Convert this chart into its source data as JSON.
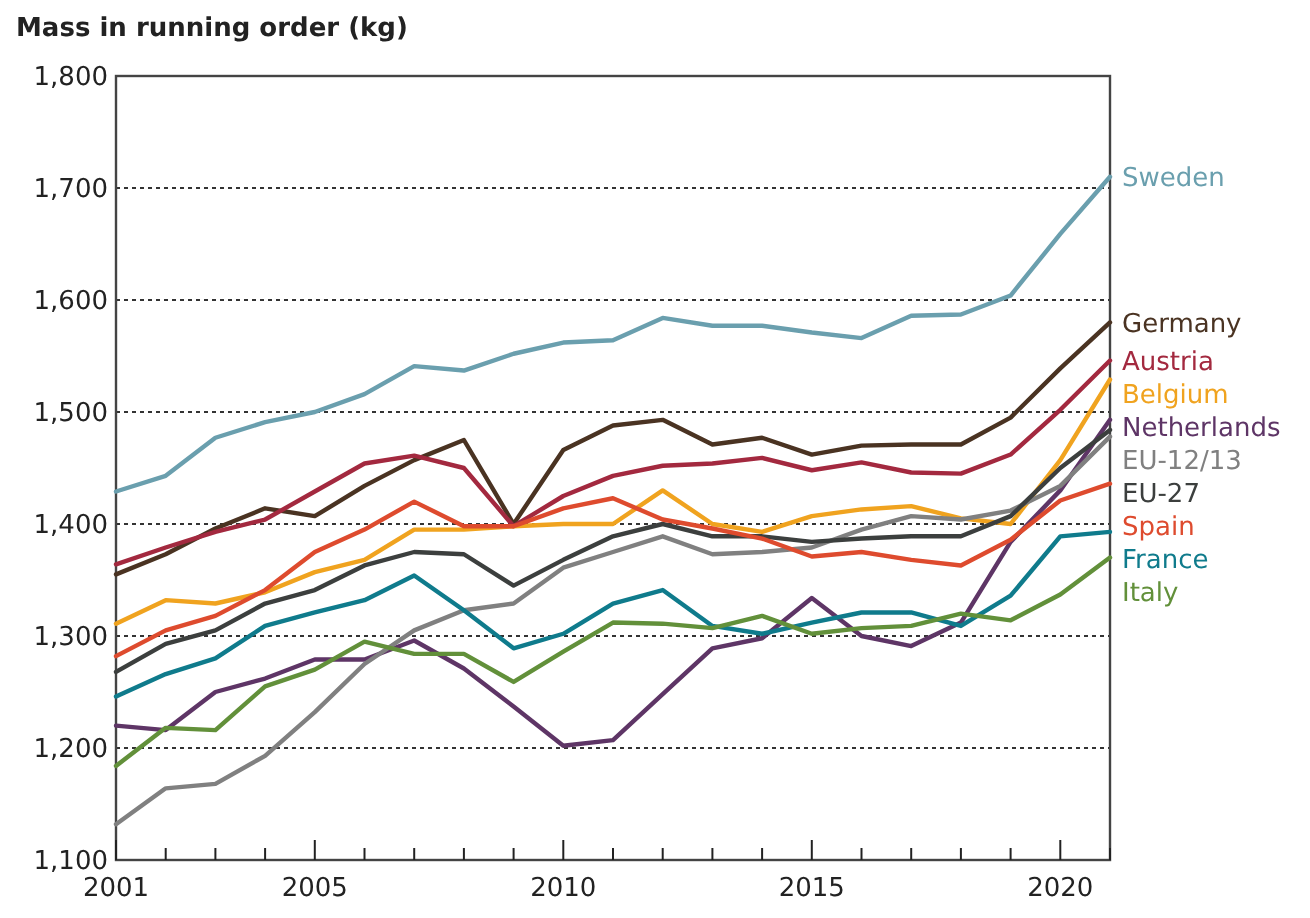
{
  "chart_data": {
    "type": "line",
    "ylabel": "Mass in running order (kg)",
    "x": [
      2001,
      2002,
      2003,
      2004,
      2005,
      2006,
      2007,
      2008,
      2009,
      2010,
      2011,
      2012,
      2013,
      2014,
      2015,
      2016,
      2017,
      2018,
      2019,
      2020,
      2021
    ],
    "xlim": [
      2001,
      2021
    ],
    "xticks": [
      {
        "value": 2001,
        "label": "2001"
      },
      {
        "value": 2002,
        "label": null
      },
      {
        "value": 2003,
        "label": null
      },
      {
        "value": 2004,
        "label": null
      },
      {
        "value": 2005,
        "label": "2005"
      },
      {
        "value": 2006,
        "label": null
      },
      {
        "value": 2007,
        "label": null
      },
      {
        "value": 2008,
        "label": null
      },
      {
        "value": 2009,
        "label": null
      },
      {
        "value": 2010,
        "label": "2010"
      },
      {
        "value": 2011,
        "label": null
      },
      {
        "value": 2012,
        "label": null
      },
      {
        "value": 2013,
        "label": null
      },
      {
        "value": 2014,
        "label": null
      },
      {
        "value": 2015,
        "label": "2015"
      },
      {
        "value": 2016,
        "label": null
      },
      {
        "value": 2017,
        "label": null
      },
      {
        "value": 2018,
        "label": null
      },
      {
        "value": 2019,
        "label": null
      },
      {
        "value": 2020,
        "label": "2020"
      },
      {
        "value": 2021,
        "label": null
      }
    ],
    "ylim": [
      1100,
      1800
    ],
    "yticks": [
      {
        "value": 1100,
        "label": "1,100"
      },
      {
        "value": 1200,
        "label": "1,200"
      },
      {
        "value": 1300,
        "label": "1,300"
      },
      {
        "value": 1400,
        "label": "1,400"
      },
      {
        "value": 1500,
        "label": "1,500"
      },
      {
        "value": 1600,
        "label": "1,600"
      },
      {
        "value": 1700,
        "label": "1,700"
      },
      {
        "value": 1800,
        "label": "1,800"
      }
    ],
    "grid": "y",
    "legend": "right",
    "marker": "none",
    "line_style": "solid",
    "series": [
      {
        "name": "Sweden",
        "color": "#6a9fae",
        "values": [
          1429,
          1443,
          1477,
          1491,
          1500,
          1516,
          1541,
          1537,
          1552,
          1562,
          1564,
          1584,
          1577,
          1577,
          1571,
          1566,
          1586,
          1587,
          1604,
          1659,
          1710
        ]
      },
      {
        "name": "Germany",
        "color": "#4a3322",
        "values": [
          1355,
          1373,
          1396,
          1414,
          1407,
          1434,
          1457,
          1475,
          1400,
          1466,
          1488,
          1493,
          1471,
          1477,
          1462,
          1470,
          1471,
          1471,
          1495,
          1539,
          1580
        ]
      },
      {
        "name": "Austria",
        "color": "#a3293f",
        "values": [
          1364,
          1379,
          1393,
          1404,
          1429,
          1454,
          1461,
          1450,
          1398,
          1425,
          1443,
          1452,
          1454,
          1459,
          1448,
          1455,
          1446,
          1445,
          1462,
          1502,
          1546
        ]
      },
      {
        "name": "Belgium",
        "color": "#f0a31f",
        "values": [
          1311,
          1332,
          1329,
          1339,
          1357,
          1368,
          1395,
          1395,
          1398,
          1400,
          1400,
          1430,
          1400,
          1393,
          1407,
          1413,
          1416,
          1405,
          1400,
          1457,
          1529
        ]
      },
      {
        "name": "Netherlands",
        "color": "#5e3566",
        "values": [
          1220,
          1216,
          1250,
          1262,
          1279,
          1279,
          1296,
          1271,
          1237,
          1202,
          1207,
          1248,
          1289,
          1298,
          1334,
          1300,
          1291,
          1312,
          1384,
          1430,
          1493
        ]
      },
      {
        "name": "EU-12/13",
        "color": "#808080",
        "values": [
          1132,
          1164,
          1168,
          1193,
          1232,
          1275,
          1305,
          1323,
          1329,
          1361,
          1375,
          1389,
          1373,
          1375,
          1379,
          1395,
          1407,
          1404,
          1412,
          1434,
          1478
        ]
      },
      {
        "name": "EU-27",
        "color": "#3c3f3e",
        "values": [
          1268,
          1293,
          1305,
          1329,
          1341,
          1363,
          1375,
          1373,
          1345,
          1368,
          1389,
          1400,
          1389,
          1389,
          1384,
          1387,
          1389,
          1389,
          1407,
          1450,
          1484
        ]
      },
      {
        "name": "Spain",
        "color": "#de4b2e",
        "values": [
          1282,
          1305,
          1318,
          1341,
          1375,
          1395,
          1420,
          1398,
          1398,
          1414,
          1423,
          1404,
          1396,
          1387,
          1371,
          1375,
          1368,
          1363,
          1386,
          1421,
          1436
        ]
      },
      {
        "name": "France",
        "color": "#0f7b8c",
        "values": [
          1246,
          1266,
          1280,
          1309,
          1321,
          1332,
          1354,
          1323,
          1289,
          1302,
          1329,
          1341,
          1309,
          1302,
          1312,
          1321,
          1321,
          1309,
          1336,
          1389,
          1393
        ]
      },
      {
        "name": "Italy",
        "color": "#62903a",
        "values": [
          1184,
          1218,
          1216,
          1255,
          1270,
          1295,
          1284,
          1284,
          1259,
          1286,
          1312,
          1311,
          1307,
          1318,
          1302,
          1307,
          1309,
          1320,
          1314,
          1337,
          1370
        ]
      }
    ]
  }
}
